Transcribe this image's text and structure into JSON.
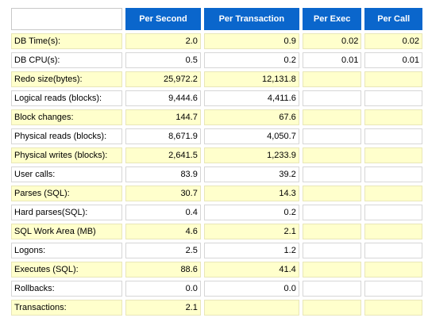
{
  "headers": {
    "per_second": "Per Second",
    "per_transaction": "Per Transaction",
    "per_exec": "Per Exec",
    "per_call": "Per Call"
  },
  "rows": [
    {
      "name": "DB Time(s):",
      "per_second": "2.0",
      "per_transaction": "0.9",
      "per_exec": "0.02",
      "per_call": "0.02"
    },
    {
      "name": "DB CPU(s):",
      "per_second": "0.5",
      "per_transaction": "0.2",
      "per_exec": "0.01",
      "per_call": "0.01"
    },
    {
      "name": "Redo size(bytes):",
      "per_second": "25,972.2",
      "per_transaction": "12,131.8",
      "per_exec": "",
      "per_call": ""
    },
    {
      "name": "Logical reads (blocks):",
      "per_second": "9,444.6",
      "per_transaction": "4,411.6",
      "per_exec": "",
      "per_call": ""
    },
    {
      "name": "Block changes:",
      "per_second": "144.7",
      "per_transaction": "67.6",
      "per_exec": "",
      "per_call": ""
    },
    {
      "name": "Physical reads (blocks):",
      "per_second": "8,671.9",
      "per_transaction": "4,050.7",
      "per_exec": "",
      "per_call": ""
    },
    {
      "name": "Physical writes (blocks):",
      "per_second": "2,641.5",
      "per_transaction": "1,233.9",
      "per_exec": "",
      "per_call": ""
    },
    {
      "name": "User calls:",
      "per_second": "83.9",
      "per_transaction": "39.2",
      "per_exec": "",
      "per_call": ""
    },
    {
      "name": "Parses (SQL):",
      "per_second": "30.7",
      "per_transaction": "14.3",
      "per_exec": "",
      "per_call": ""
    },
    {
      "name": "Hard parses(SQL):",
      "per_second": "0.4",
      "per_transaction": "0.2",
      "per_exec": "",
      "per_call": ""
    },
    {
      "name": "SQL Work Area (MB)",
      "per_second": "4.6",
      "per_transaction": "2.1",
      "per_exec": "",
      "per_call": ""
    },
    {
      "name": "Logons:",
      "per_second": "2.5",
      "per_transaction": "1.2",
      "per_exec": "",
      "per_call": ""
    },
    {
      "name": "Executes (SQL):",
      "per_second": "88.6",
      "per_transaction": "41.4",
      "per_exec": "",
      "per_call": ""
    },
    {
      "name": "Rollbacks:",
      "per_second": "0.0",
      "per_transaction": "0.0",
      "per_exec": "",
      "per_call": ""
    },
    {
      "name": "Transactions:",
      "per_second": "2.1",
      "per_transaction": "",
      "per_exec": "",
      "per_call": ""
    }
  ],
  "colors": {
    "header_bg": "#0a66cc",
    "header_text": "#ffffff",
    "alt_row_bg": "#ffffcc",
    "row_bg": "#ffffff"
  }
}
